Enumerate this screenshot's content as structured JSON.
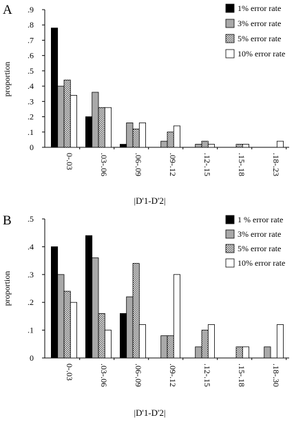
{
  "chart_data": [
    {
      "panel": "A",
      "type": "bar",
      "ylabel": "proportion",
      "xlabel": "|D'1-D'2|",
      "ylim": [
        0,
        0.9
      ],
      "yticks": [
        "0",
        ".1",
        ".2",
        ".3",
        ".4",
        ".5",
        ".6",
        ".7",
        ".8",
        ".9"
      ],
      "categories": [
        "0-.03",
        ".03-.06",
        ".06-.09",
        ".09-.12",
        ".12-.15",
        ".15-.18",
        ".18-.23"
      ],
      "legend_position": "top-right",
      "series": [
        {
          "name": "1% error rate",
          "fill": "black",
          "values": [
            0.78,
            0.2,
            0.02,
            0,
            0,
            0,
            0
          ]
        },
        {
          "name": "3% error rate",
          "fill": "gray",
          "values": [
            0.4,
            0.36,
            0.16,
            0.04,
            0.02,
            0,
            0
          ]
        },
        {
          "name": "5% error rate",
          "fill": "hatch",
          "values": [
            0.44,
            0.26,
            0.12,
            0.1,
            0.04,
            0.02,
            0
          ]
        },
        {
          "name": "10% error rate",
          "fill": "white",
          "values": [
            0.34,
            0.26,
            0.16,
            0.14,
            0.02,
            0.02,
            0.04
          ]
        }
      ]
    },
    {
      "panel": "B",
      "type": "bar",
      "ylabel": "proportion",
      "xlabel": "|D'1-D'2|",
      "ylim": [
        0,
        0.5
      ],
      "yticks": [
        "0",
        ".1",
        ".2",
        ".3",
        ".4",
        ".5"
      ],
      "categories": [
        "0-.03",
        ".03-.06",
        ".06-.09",
        ".09-.12",
        ".12-.15",
        ".15-.18",
        ".18-.30"
      ],
      "legend_position": "top-right",
      "series": [
        {
          "name": "1 % error rate",
          "fill": "black",
          "values": [
            0.4,
            0.44,
            0.16,
            0,
            0,
            0,
            0
          ]
        },
        {
          "name": "3% error rate",
          "fill": "gray",
          "values": [
            0.3,
            0.36,
            0.22,
            0.08,
            0.04,
            0,
            0.04
          ]
        },
        {
          "name": "5% error rate",
          "fill": "hatch",
          "values": [
            0.24,
            0.16,
            0.34,
            0.08,
            0.1,
            0.04,
            0
          ]
        },
        {
          "name": "10% error rate",
          "fill": "white",
          "values": [
            0.2,
            0.1,
            0.12,
            0.3,
            0.12,
            0.04,
            0.12
          ]
        }
      ]
    }
  ]
}
